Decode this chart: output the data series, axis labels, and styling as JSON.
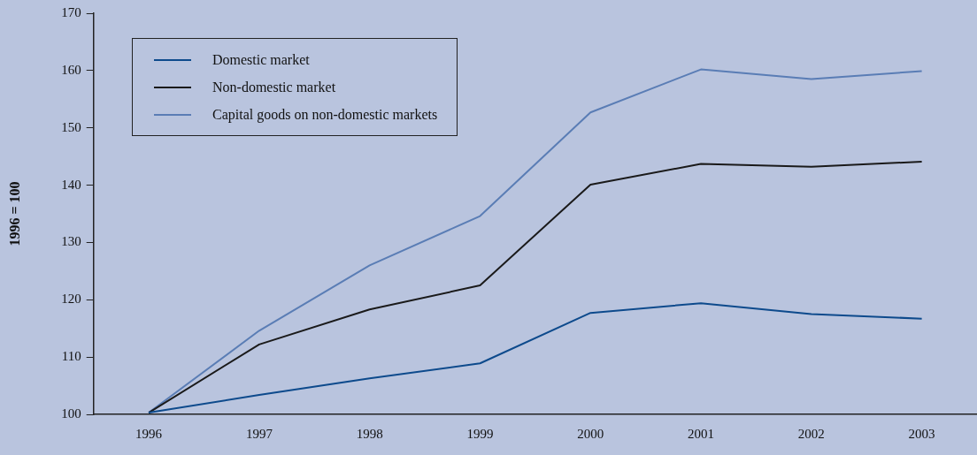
{
  "chart_data": {
    "type": "line",
    "ylabel": "1996 = 100",
    "categories": [
      "1996",
      "1997",
      "1998",
      "1999",
      "2000",
      "2001",
      "2002",
      "2003"
    ],
    "series": [
      {
        "name": "Domestic market",
        "color": "#0d4a8c",
        "values": [
          100.3,
          103.4,
          106.3,
          108.9,
          117.7,
          119.4,
          117.5,
          116.7
        ]
      },
      {
        "name": "Non-domestic market",
        "color": "#1a1a1a",
        "values": [
          100.3,
          112.2,
          118.3,
          122.5,
          140.1,
          143.7,
          143.2,
          144.1
        ]
      },
      {
        "name": "Capital goods on non-domestic markets",
        "color": "#5a7db5",
        "values": [
          100.3,
          114.6,
          126.0,
          134.6,
          152.7,
          160.2,
          158.5,
          159.9
        ]
      }
    ],
    "ylim": [
      100,
      170
    ],
    "yticks": [
      100,
      110,
      120,
      130,
      140,
      150,
      160,
      170
    ],
    "grid": false,
    "legend": "top left",
    "marker": "none",
    "line_style": "solid"
  }
}
